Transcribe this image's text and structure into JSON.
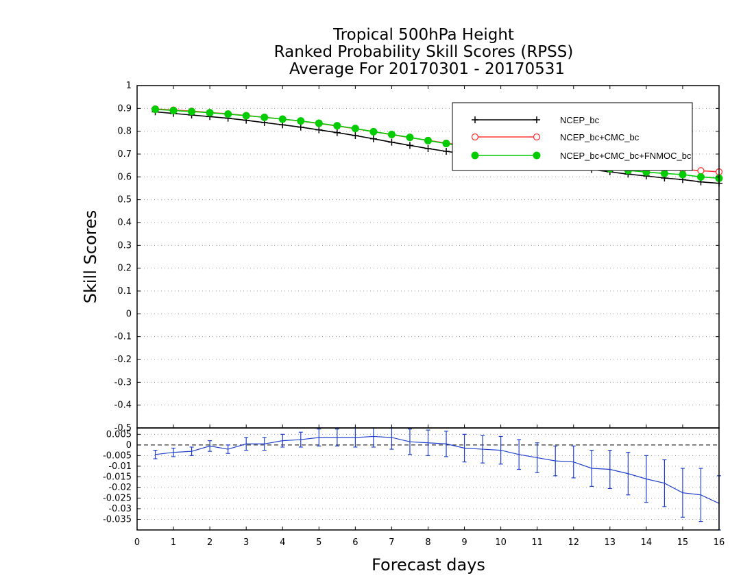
{
  "chart_data": [
    {
      "type": "line",
      "title_lines": [
        "Tropical 500hPa Height",
        "Ranked Probability Skill Scores (RPSS)",
        "Average For 20170301 - 20170531"
      ],
      "xlabel": "Forecast days",
      "ylabel": "Skill Scores",
      "xlim": [
        0,
        16
      ],
      "ylim": [
        -0.5,
        1
      ],
      "grid": true,
      "legend_position": "top-right",
      "x": [
        0.5,
        1,
        1.5,
        2,
        2.5,
        3,
        3.5,
        4,
        4.5,
        5,
        5.5,
        6,
        6.5,
        7,
        7.5,
        8,
        8.5,
        9,
        9.5,
        10,
        10.5,
        11,
        11.5,
        12,
        12.5,
        13,
        13.5,
        14,
        14.5,
        15,
        15.5,
        16
      ],
      "x_ticks": [
        "0",
        "1",
        "2",
        "3",
        "4",
        "5",
        "6",
        "7",
        "8",
        "9",
        "10",
        "11",
        "12",
        "13",
        "14",
        "15",
        "16"
      ],
      "y_ticks": [
        "-0.5",
        "-0.4",
        "-0.3",
        "-0.2",
        "-0.1",
        "0",
        "0.1",
        "0.2",
        "0.3",
        "0.4",
        "0.5",
        "0.6",
        "0.7",
        "0.8",
        "0.9",
        "1"
      ],
      "series": [
        {
          "name": "NCEP_bc",
          "color": "#000000",
          "marker": "plus",
          "values": [
            0.885,
            0.878,
            0.871,
            0.864,
            0.857,
            0.848,
            0.838,
            0.828,
            0.818,
            0.806,
            0.794,
            0.781,
            0.767,
            0.752,
            0.738,
            0.724,
            0.712,
            0.701,
            0.69,
            0.68,
            0.67,
            0.661,
            0.65,
            0.642,
            0.632,
            0.622,
            0.612,
            0.604,
            0.595,
            0.588,
            0.578,
            0.572
          ]
        },
        {
          "name": "NCEP_bc+CMC_bc",
          "color": "#ff3333",
          "marker": "open-circle",
          "values": [
            0.898,
            0.893,
            0.888,
            0.882,
            0.876,
            0.869,
            0.861,
            0.853,
            0.844,
            0.834,
            0.823,
            0.811,
            0.798,
            0.785,
            0.772,
            0.76,
            0.748,
            0.737,
            0.727,
            0.717,
            0.707,
            0.697,
            0.688,
            0.679,
            0.671,
            0.662,
            0.654,
            0.646,
            0.638,
            0.633,
            0.627,
            0.622
          ]
        },
        {
          "name": "NCEP_bc+CMC_bc+FNMOC_bc",
          "color": "#00cc00",
          "marker": "filled-circle",
          "values": [
            0.896,
            0.891,
            0.886,
            0.881,
            0.875,
            0.868,
            0.861,
            0.853,
            0.845,
            0.835,
            0.824,
            0.812,
            0.798,
            0.786,
            0.773,
            0.759,
            0.746,
            0.733,
            0.72,
            0.706,
            0.693,
            0.681,
            0.668,
            0.657,
            0.646,
            0.636,
            0.628,
            0.621,
            0.615,
            0.61,
            0.6,
            0.594
          ]
        }
      ]
    },
    {
      "type": "line",
      "subtype": "difference-with-error-bars",
      "xlim": [
        0,
        16
      ],
      "ylim": [
        -0.04,
        0.008
      ],
      "grid": true,
      "y_ticks": [
        "-0.035",
        "-0.03",
        "-0.025",
        "-0.02",
        "-0.015",
        "-0.01",
        "-0.005",
        "0",
        "0.005"
      ],
      "zero_line": true,
      "x": [
        0.5,
        1,
        1.5,
        2,
        2.5,
        3,
        3.5,
        4,
        4.5,
        5,
        5.5,
        6,
        6.5,
        7,
        7.5,
        8,
        8.5,
        9,
        9.5,
        10,
        10.5,
        11,
        11.5,
        12,
        12.5,
        13,
        13.5,
        14,
        14.5,
        15,
        15.5,
        16
      ],
      "series": [
        {
          "color": "#1f3fcc",
          "values": [
            -0.0045,
            -0.0035,
            -0.003,
            -0.0005,
            -0.002,
            0.0005,
            0.0005,
            0.002,
            0.0025,
            0.0035,
            0.0035,
            0.0035,
            0.004,
            0.0035,
            0.0015,
            0.001,
            0.0005,
            -0.0015,
            -0.002,
            -0.0025,
            -0.0045,
            -0.006,
            -0.0075,
            -0.008,
            -0.011,
            -0.0115,
            -0.0135,
            -0.016,
            -0.018,
            -0.0225,
            -0.0235,
            -0.0275
          ],
          "error": [
            0.002,
            0.002,
            0.002,
            0.0025,
            0.002,
            0.003,
            0.003,
            0.003,
            0.0035,
            0.004,
            0.004,
            0.0045,
            0.005,
            0.0055,
            0.006,
            0.006,
            0.006,
            0.0065,
            0.0065,
            0.0065,
            0.007,
            0.007,
            0.007,
            0.0075,
            0.0085,
            0.009,
            0.01,
            0.011,
            0.011,
            0.0115,
            0.0125,
            0.013
          ]
        }
      ]
    }
  ]
}
